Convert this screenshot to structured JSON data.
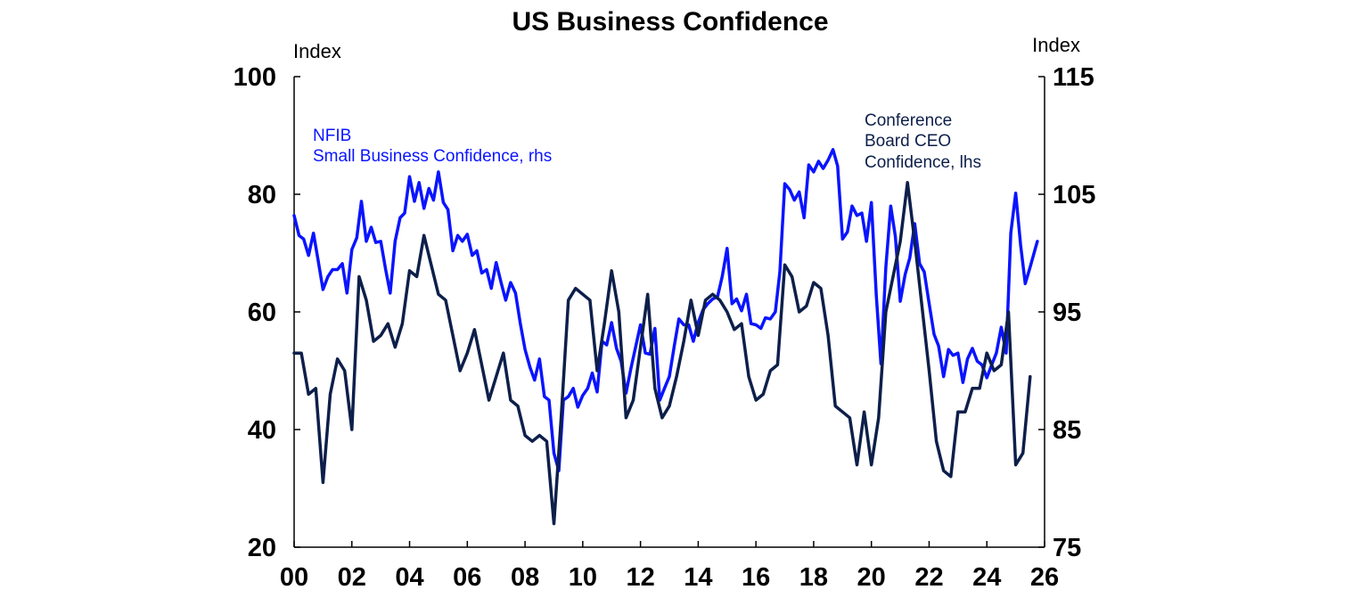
{
  "chart_data": {
    "type": "line",
    "title": "US Business Confidence",
    "left_axis": {
      "unit_label": "Index",
      "ylim": [
        20,
        100
      ],
      "ticks": [
        20,
        40,
        60,
        80,
        100
      ],
      "tick_labels": [
        "20",
        "40",
        "60",
        "80",
        "100"
      ]
    },
    "right_axis": {
      "unit_label": "Index",
      "ylim": [
        75,
        115
      ],
      "ticks": [
        75,
        85,
        95,
        105,
        115
      ],
      "tick_labels": [
        "75",
        "85",
        "95",
        "105",
        "115"
      ]
    },
    "x_axis": {
      "xlim": [
        2000,
        2026
      ],
      "ticks": [
        2000,
        2002,
        2004,
        2006,
        2008,
        2010,
        2012,
        2014,
        2016,
        2018,
        2020,
        2022,
        2024,
        2026
      ],
      "tick_labels": [
        "00",
        "02",
        "04",
        "06",
        "08",
        "10",
        "12",
        "14",
        "16",
        "18",
        "20",
        "22",
        "24",
        "26"
      ]
    },
    "grid": false,
    "series": [
      {
        "name": "Conference Board CEO Confidence, lhs",
        "label_lines": [
          "Conference",
          "Board CEO",
          "Confidence, lhs"
        ],
        "axis": "left",
        "color": "#0d1f4a",
        "points": [
          [
            2000.0,
            53
          ],
          [
            2000.25,
            53
          ],
          [
            2000.5,
            46
          ],
          [
            2000.75,
            47
          ],
          [
            2001.0,
            31
          ],
          [
            2001.25,
            46
          ],
          [
            2001.5,
            52
          ],
          [
            2001.75,
            50
          ],
          [
            2002.0,
            40
          ],
          [
            2002.25,
            66
          ],
          [
            2002.5,
            62
          ],
          [
            2002.75,
            55
          ],
          [
            2003.0,
            56
          ],
          [
            2003.25,
            58
          ],
          [
            2003.5,
            54
          ],
          [
            2003.75,
            58
          ],
          [
            2004.0,
            67
          ],
          [
            2004.25,
            66
          ],
          [
            2004.5,
            73
          ],
          [
            2004.75,
            68
          ],
          [
            2005.0,
            63
          ],
          [
            2005.25,
            62
          ],
          [
            2005.5,
            56
          ],
          [
            2005.75,
            50
          ],
          [
            2006.0,
            53
          ],
          [
            2006.25,
            57
          ],
          [
            2006.5,
            51
          ],
          [
            2006.75,
            45
          ],
          [
            2007.0,
            49
          ],
          [
            2007.25,
            53
          ],
          [
            2007.5,
            45
          ],
          [
            2007.75,
            44
          ],
          [
            2008.0,
            39
          ],
          [
            2008.25,
            38
          ],
          [
            2008.5,
            39
          ],
          [
            2008.75,
            38
          ],
          [
            2009.0,
            24
          ],
          [
            2009.25,
            42
          ],
          [
            2009.5,
            62
          ],
          [
            2009.75,
            64
          ],
          [
            2010.0,
            63
          ],
          [
            2010.25,
            62
          ],
          [
            2010.5,
            50
          ],
          [
            2010.75,
            58
          ],
          [
            2011.0,
            67
          ],
          [
            2011.25,
            60
          ],
          [
            2011.5,
            42
          ],
          [
            2011.75,
            45
          ],
          [
            2012.0,
            54
          ],
          [
            2012.25,
            63
          ],
          [
            2012.5,
            47
          ],
          [
            2012.75,
            42
          ],
          [
            2013.0,
            44
          ],
          [
            2013.25,
            49
          ],
          [
            2013.5,
            55
          ],
          [
            2013.75,
            62
          ],
          [
            2014.0,
            56
          ],
          [
            2014.25,
            62
          ],
          [
            2014.5,
            63
          ],
          [
            2014.75,
            62
          ],
          [
            2015.0,
            60
          ],
          [
            2015.25,
            57
          ],
          [
            2015.5,
            58
          ],
          [
            2015.75,
            49
          ],
          [
            2016.0,
            45
          ],
          [
            2016.25,
            46
          ],
          [
            2016.5,
            50
          ],
          [
            2016.75,
            51
          ],
          [
            2017.0,
            68
          ],
          [
            2017.25,
            66
          ],
          [
            2017.5,
            60
          ],
          [
            2017.75,
            61
          ],
          [
            2018.0,
            65
          ],
          [
            2018.25,
            64
          ],
          [
            2018.5,
            56
          ],
          [
            2018.75,
            44
          ],
          [
            2019.0,
            43
          ],
          [
            2019.25,
            42
          ],
          [
            2019.5,
            34
          ],
          [
            2019.75,
            43
          ],
          [
            2020.0,
            34
          ],
          [
            2020.25,
            42
          ],
          [
            2020.5,
            60
          ],
          [
            2020.75,
            66
          ],
          [
            2021.0,
            72
          ],
          [
            2021.25,
            82
          ],
          [
            2021.5,
            72
          ],
          [
            2021.75,
            61
          ],
          [
            2022.0,
            50
          ],
          [
            2022.25,
            38
          ],
          [
            2022.5,
            33
          ],
          [
            2022.75,
            32
          ],
          [
            2023.0,
            43
          ],
          [
            2023.25,
            43
          ],
          [
            2023.5,
            47
          ],
          [
            2023.75,
            47
          ],
          [
            2024.0,
            53
          ],
          [
            2024.25,
            50
          ],
          [
            2024.5,
            51
          ],
          [
            2024.75,
            60
          ],
          [
            2025.0,
            34
          ],
          [
            2025.25,
            36
          ],
          [
            2025.5,
            49
          ]
        ]
      },
      {
        "name": "NFIB Small Business Confidence, rhs",
        "label_lines": [
          "NFIB",
          "Small Business Confidence, rhs"
        ],
        "axis": "right",
        "color": "#0a14ff",
        "points": [
          [
            2000.0,
            103.2
          ],
          [
            2000.17,
            101.5
          ],
          [
            2000.33,
            101.2
          ],
          [
            2000.5,
            99.8
          ],
          [
            2000.67,
            101.7
          ],
          [
            2000.83,
            99.4
          ],
          [
            2001.0,
            96.9
          ],
          [
            2001.17,
            98.0
          ],
          [
            2001.33,
            98.6
          ],
          [
            2001.5,
            98.6
          ],
          [
            2001.67,
            99.1
          ],
          [
            2001.83,
            96.6
          ],
          [
            2002.0,
            100.3
          ],
          [
            2002.17,
            101.3
          ],
          [
            2002.33,
            104.4
          ],
          [
            2002.5,
            101.0
          ],
          [
            2002.67,
            102.2
          ],
          [
            2002.83,
            100.9
          ],
          [
            2003.0,
            101.0
          ],
          [
            2003.17,
            98.6
          ],
          [
            2003.33,
            96.6
          ],
          [
            2003.5,
            101.0
          ],
          [
            2003.67,
            103.0
          ],
          [
            2003.83,
            103.4
          ],
          [
            2004.0,
            106.5
          ],
          [
            2004.17,
            104.4
          ],
          [
            2004.33,
            106.0
          ],
          [
            2004.5,
            103.8
          ],
          [
            2004.67,
            105.5
          ],
          [
            2004.83,
            104.5
          ],
          [
            2005.0,
            106.9
          ],
          [
            2005.17,
            104.3
          ],
          [
            2005.33,
            103.7
          ],
          [
            2005.5,
            100.2
          ],
          [
            2005.67,
            101.5
          ],
          [
            2005.83,
            101.0
          ],
          [
            2006.0,
            101.6
          ],
          [
            2006.17,
            99.8
          ],
          [
            2006.33,
            100.2
          ],
          [
            2006.5,
            98.3
          ],
          [
            2006.67,
            98.6
          ],
          [
            2006.83,
            97.0
          ],
          [
            2007.0,
            99.2
          ],
          [
            2007.17,
            97.5
          ],
          [
            2007.33,
            96.0
          ],
          [
            2007.5,
            97.5
          ],
          [
            2007.67,
            96.6
          ],
          [
            2007.83,
            94.1
          ],
          [
            2008.0,
            91.8
          ],
          [
            2008.17,
            90.3
          ],
          [
            2008.33,
            89.2
          ],
          [
            2008.5,
            91.0
          ],
          [
            2008.67,
            87.8
          ],
          [
            2008.83,
            87.5
          ],
          [
            2009.0,
            83.0
          ],
          [
            2009.17,
            81.5
          ],
          [
            2009.33,
            87.5
          ],
          [
            2009.5,
            87.8
          ],
          [
            2009.67,
            88.5
          ],
          [
            2009.83,
            86.9
          ],
          [
            2010.0,
            87.9
          ],
          [
            2010.17,
            88.5
          ],
          [
            2010.33,
            89.8
          ],
          [
            2010.5,
            88.2
          ],
          [
            2010.67,
            92.5
          ],
          [
            2010.83,
            92.2
          ],
          [
            2011.0,
            94.1
          ],
          [
            2011.17,
            91.9
          ],
          [
            2011.33,
            90.8
          ],
          [
            2011.5,
            88.1
          ],
          [
            2011.67,
            90.2
          ],
          [
            2011.83,
            92.0
          ],
          [
            2012.0,
            93.9
          ],
          [
            2012.17,
            91.5
          ],
          [
            2012.33,
            91.4
          ],
          [
            2012.5,
            93.6
          ],
          [
            2012.67,
            87.5
          ],
          [
            2012.83,
            88.5
          ],
          [
            2013.0,
            89.5
          ],
          [
            2013.17,
            92.1
          ],
          [
            2013.33,
            94.4
          ],
          [
            2013.5,
            93.9
          ],
          [
            2013.67,
            93.9
          ],
          [
            2013.83,
            92.5
          ],
          [
            2014.0,
            94.1
          ],
          [
            2014.17,
            95.2
          ],
          [
            2014.33,
            95.7
          ],
          [
            2014.5,
            96.1
          ],
          [
            2014.67,
            96.3
          ],
          [
            2014.83,
            98.0
          ],
          [
            2015.0,
            100.4
          ],
          [
            2015.17,
            95.7
          ],
          [
            2015.33,
            96.1
          ],
          [
            2015.5,
            95.1
          ],
          [
            2015.67,
            96.5
          ],
          [
            2015.83,
            94.0
          ],
          [
            2016.0,
            93.9
          ],
          [
            2016.17,
            93.6
          ],
          [
            2016.33,
            94.5
          ],
          [
            2016.5,
            94.4
          ],
          [
            2016.67,
            95.0
          ],
          [
            2016.83,
            98.4
          ],
          [
            2017.0,
            105.9
          ],
          [
            2017.17,
            105.4
          ],
          [
            2017.33,
            104.5
          ],
          [
            2017.5,
            105.2
          ],
          [
            2017.67,
            103.0
          ],
          [
            2017.83,
            107.5
          ],
          [
            2018.0,
            106.9
          ],
          [
            2018.17,
            107.8
          ],
          [
            2018.33,
            107.2
          ],
          [
            2018.5,
            107.9
          ],
          [
            2018.67,
            108.8
          ],
          [
            2018.83,
            107.4
          ],
          [
            2019.0,
            101.2
          ],
          [
            2019.17,
            101.8
          ],
          [
            2019.33,
            104.0
          ],
          [
            2019.5,
            103.2
          ],
          [
            2019.67,
            103.4
          ],
          [
            2019.83,
            101.0
          ],
          [
            2020.0,
            104.3
          ],
          [
            2020.17,
            96.4
          ],
          [
            2020.33,
            90.6
          ],
          [
            2020.5,
            98.8
          ],
          [
            2020.67,
            104.0
          ],
          [
            2020.83,
            101.4
          ],
          [
            2021.0,
            95.9
          ],
          [
            2021.17,
            98.2
          ],
          [
            2021.33,
            99.6
          ],
          [
            2021.5,
            102.5
          ],
          [
            2021.67,
            99.1
          ],
          [
            2021.83,
            98.4
          ],
          [
            2022.0,
            95.7
          ],
          [
            2022.17,
            93.1
          ],
          [
            2022.33,
            92.1
          ],
          [
            2022.5,
            89.5
          ],
          [
            2022.67,
            91.8
          ],
          [
            2022.83,
            91.3
          ],
          [
            2023.0,
            91.5
          ],
          [
            2023.17,
            89.0
          ],
          [
            2023.33,
            91.0
          ],
          [
            2023.5,
            91.9
          ],
          [
            2023.67,
            90.8
          ],
          [
            2023.83,
            90.5
          ],
          [
            2024.0,
            89.4
          ],
          [
            2024.17,
            90.5
          ],
          [
            2024.33,
            91.5
          ],
          [
            2024.5,
            93.7
          ],
          [
            2024.67,
            91.5
          ],
          [
            2024.83,
            101.7
          ],
          [
            2025.0,
            105.1
          ],
          [
            2025.17,
            100.7
          ],
          [
            2025.33,
            97.4
          ],
          [
            2025.5,
            98.8
          ],
          [
            2025.67,
            100.3
          ],
          [
            2025.75,
            101.0
          ]
        ]
      }
    ]
  }
}
